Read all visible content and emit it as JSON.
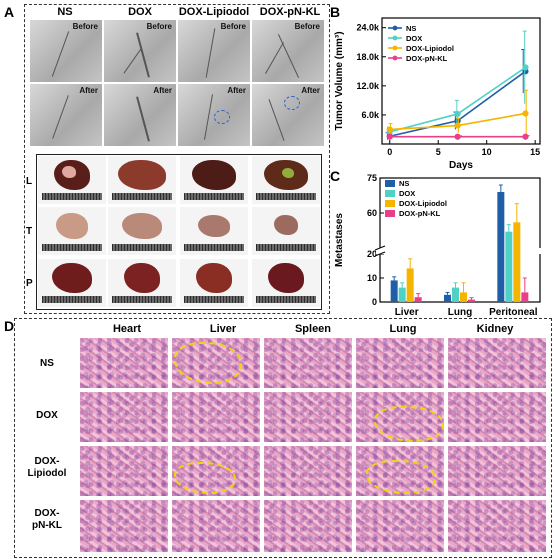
{
  "panels": {
    "a": "A",
    "b": "B",
    "c": "C",
    "d": "D"
  },
  "panel_a": {
    "columns": [
      "NS",
      "DOX",
      "DOX-Lipiodol",
      "DOX-pN-KL"
    ],
    "before": "Before",
    "after": "After",
    "rows": [
      "L",
      "T",
      "P"
    ]
  },
  "panel_d": {
    "columns": [
      "Heart",
      "Liver",
      "Spleen",
      "Lung",
      "Kidney"
    ],
    "rows": [
      [
        "NS"
      ],
      [
        "DOX"
      ],
      [
        "DOX-",
        "Lipiodol"
      ],
      [
        "DOX-",
        "pN-KL"
      ]
    ]
  },
  "colors": {
    "NS": "#1f5fa8",
    "DOX": "#4fd1c5",
    "DOX-Lipiodol": "#f4b400",
    "DOX-pN-KL": "#e83e8c",
    "tumor_outline": "#f2d40f"
  },
  "chart_data": [
    {
      "type": "line",
      "xlabel": "Days",
      "ylabel": "Tumor Volume (mm³)",
      "x": [
        0,
        7,
        14
      ],
      "xticks": [
        "0",
        "5",
        "10",
        "15"
      ],
      "yticks": [
        "6.0k",
        "12.0k",
        "18.0k",
        "24.0k"
      ],
      "xlim": [
        -0.8,
        15.5
      ],
      "ylim": [
        0,
        26000
      ],
      "legend": "top-left",
      "series": [
        {
          "name": "NS",
          "values": [
            1600,
            4800,
            15000
          ],
          "err": [
            700,
            1800,
            4500
          ]
        },
        {
          "name": "DOX",
          "values": [
            2500,
            6200,
            15800
          ],
          "err": [
            1000,
            2800,
            7500
          ]
        },
        {
          "name": "DOX-Lipiodol",
          "values": [
            3000,
            3800,
            6300
          ],
          "err": [
            1200,
            1500,
            4800
          ]
        },
        {
          "name": "DOX-pN-KL",
          "values": [
            1500,
            1500,
            1500
          ],
          "err": [
            200,
            200,
            200
          ]
        }
      ]
    },
    {
      "type": "bar",
      "xlabel": "",
      "ylabel": "Metastases",
      "categories": [
        "Liver",
        "Lung",
        "Peritoneal"
      ],
      "yticks": [
        "0",
        "10",
        "20",
        "60",
        "75"
      ],
      "axis_break": true,
      "legend": "top-left",
      "series": [
        {
          "name": "NS",
          "values": [
            9,
            3,
            69
          ],
          "err": [
            1.5,
            1,
            3
          ]
        },
        {
          "name": "DOX",
          "values": [
            6,
            6,
            52
          ],
          "err": [
            2,
            2,
            3
          ]
        },
        {
          "name": "DOX-Lipiodol",
          "values": [
            14,
            4,
            56
          ],
          "err": [
            4,
            4,
            8
          ]
        },
        {
          "name": "DOX-pN-KL",
          "values": [
            2,
            1,
            4
          ],
          "err": [
            1.5,
            0.8,
            6
          ]
        }
      ]
    }
  ]
}
